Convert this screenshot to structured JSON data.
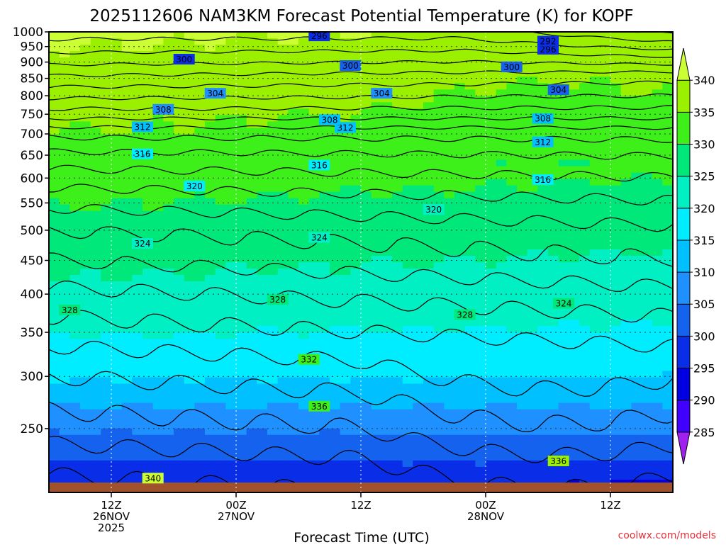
{
  "header": {
    "title": "2025112606 NAM3KM Forecast Potential Temperature (K) for KOPF"
  },
  "footer": {
    "xlabel": "Forecast Time (UTC)",
    "credit": "coolwx.com/models"
  },
  "chart_data": {
    "type": "heatmap",
    "title": "2025112606 NAM3KM Forecast Potential Temperature (K) for KOPF",
    "xlabel": "Forecast Time (UTC)",
    "ylabel": "",
    "y_scale": "log",
    "y_inverted": true,
    "ylim": [
      1000,
      200
    ],
    "xlim_forecast_hours": [
      0,
      60
    ],
    "y_ticks": [
      250,
      300,
      350,
      400,
      450,
      500,
      550,
      600,
      650,
      700,
      750,
      800,
      850,
      900,
      950,
      1000
    ],
    "x_ticks": [
      {
        "hour": 6,
        "lines": [
          "12Z",
          "26NOV",
          "2025"
        ]
      },
      {
        "hour": 18,
        "lines": [
          "00Z",
          "27NOV"
        ]
      },
      {
        "hour": 30,
        "lines": [
          "12Z"
        ]
      },
      {
        "hour": 42,
        "lines": [
          "00Z",
          "28NOV"
        ]
      },
      {
        "hour": 54,
        "lines": [
          "12Z"
        ]
      }
    ],
    "colorbar": {
      "levels": [
        285,
        290,
        295,
        300,
        305,
        310,
        315,
        320,
        325,
        330,
        335,
        340
      ],
      "labels": [
        "285",
        "290",
        "295",
        "300",
        "305",
        "310",
        "315",
        "320",
        "325",
        "330",
        "335",
        "340"
      ],
      "colors": [
        "#a020f0",
        "#4000ff",
        "#0000e0",
        "#0a2ee8",
        "#1462ee",
        "#1e90ff",
        "#00c0ff",
        "#00ecff",
        "#00f0c4",
        "#00e87a",
        "#3ef01a",
        "#9bf000",
        "#ccff33"
      ],
      "extend": "both"
    },
    "contour_interval": 2,
    "contour_labels": [
      {
        "value": "340",
        "hour": 10.0,
        "p": 210
      },
      {
        "value": "336",
        "hour": 49.0,
        "p": 223
      },
      {
        "value": "336",
        "hour": 26.0,
        "p": 270
      },
      {
        "value": "332",
        "hour": 25.0,
        "p": 318
      },
      {
        "value": "328",
        "hour": 2.0,
        "p": 378
      },
      {
        "value": "328",
        "hour": 22.0,
        "p": 392
      },
      {
        "value": "328",
        "hour": 40.0,
        "p": 372
      },
      {
        "value": "324",
        "hour": 49.5,
        "p": 387
      },
      {
        "value": "324",
        "hour": 9.0,
        "p": 477
      },
      {
        "value": "324",
        "hour": 26.0,
        "p": 487
      },
      {
        "value": "320",
        "hour": 37.0,
        "p": 537
      },
      {
        "value": "320",
        "hour": 14.0,
        "p": 583
      },
      {
        "value": "316",
        "hour": 47.5,
        "p": 596
      },
      {
        "value": "316",
        "hour": 26.0,
        "p": 627
      },
      {
        "value": "316",
        "hour": 9.0,
        "p": 652
      },
      {
        "value": "312",
        "hour": 47.5,
        "p": 680
      },
      {
        "value": "312",
        "hour": 28.5,
        "p": 715
      },
      {
        "value": "312",
        "hour": 9.0,
        "p": 717
      },
      {
        "value": "308",
        "hour": 27.0,
        "p": 735
      },
      {
        "value": "308",
        "hour": 47.5,
        "p": 738
      },
      {
        "value": "308",
        "hour": 11.0,
        "p": 762
      },
      {
        "value": "304",
        "hour": 16.0,
        "p": 806
      },
      {
        "value": "304",
        "hour": 32.0,
        "p": 806
      },
      {
        "value": "304",
        "hour": 49.0,
        "p": 816
      },
      {
        "value": "300",
        "hour": 29.0,
        "p": 888
      },
      {
        "value": "300",
        "hour": 44.5,
        "p": 884
      },
      {
        "value": "300",
        "hour": 13.0,
        "p": 908
      },
      {
        "value": "296",
        "hour": 48.0,
        "p": 940
      },
      {
        "value": "292",
        "hour": 48.0,
        "p": 967
      },
      {
        "value": "296",
        "hour": 26.0,
        "p": 985
      }
    ]
  }
}
